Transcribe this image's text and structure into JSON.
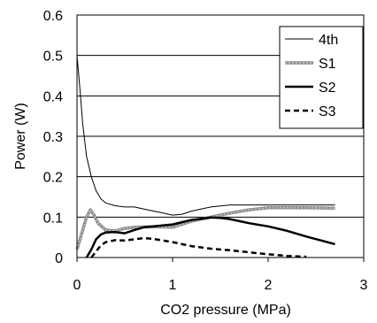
{
  "chart_data": {
    "type": "line",
    "xlabel": "CO2 pressure (MPa)",
    "ylabel": "Power (W)",
    "xlim": [
      0,
      3
    ],
    "ylim": [
      0,
      0.6
    ],
    "x_ticks": [
      "0",
      "1",
      "2",
      "3"
    ],
    "y_ticks": [
      "0",
      "0.1",
      "0.2",
      "0.3",
      "0.4",
      "0.5",
      "0.6"
    ],
    "grid": "horizontal",
    "legend_position": "top-right",
    "series": [
      {
        "name": "4th",
        "color": "#000000",
        "style": "thin-solid",
        "x": [
          0,
          0.03,
          0.06,
          0.1,
          0.15,
          0.2,
          0.25,
          0.3,
          0.4,
          0.5,
          0.6,
          0.7,
          0.8,
          0.9,
          1.0,
          1.1,
          1.2,
          1.4,
          1.6,
          2.0,
          2.4,
          2.7
        ],
        "y": [
          0.5,
          0.42,
          0.33,
          0.25,
          0.2,
          0.165,
          0.145,
          0.135,
          0.128,
          0.125,
          0.125,
          0.12,
          0.115,
          0.11,
          0.105,
          0.107,
          0.115,
          0.125,
          0.13,
          0.13,
          0.13,
          0.13
        ]
      },
      {
        "name": "S1",
        "color": "#999999",
        "style": "gray-thick",
        "x": [
          0,
          0.05,
          0.1,
          0.14,
          0.18,
          0.22,
          0.3,
          0.4,
          0.5,
          0.6,
          0.8,
          1.0,
          1.2,
          1.4,
          1.6,
          1.8,
          2.0,
          2.4,
          2.7
        ],
        "y": [
          0.02,
          0.06,
          0.1,
          0.118,
          0.105,
          0.085,
          0.068,
          0.066,
          0.072,
          0.075,
          0.076,
          0.075,
          0.09,
          0.1,
          0.11,
          0.118,
          0.123,
          0.123,
          0.122
        ]
      },
      {
        "name": "S2",
        "color": "#000000",
        "style": "thick-solid",
        "x": [
          0.1,
          0.15,
          0.2,
          0.25,
          0.3,
          0.4,
          0.5,
          0.6,
          0.7,
          0.8,
          1.0,
          1.2,
          1.3,
          1.4,
          1.5,
          1.6,
          1.7,
          1.8,
          2.0,
          2.2,
          2.4,
          2.7
        ],
        "y": [
          0.0,
          0.02,
          0.045,
          0.057,
          0.062,
          0.063,
          0.06,
          0.068,
          0.075,
          0.077,
          0.082,
          0.093,
          0.096,
          0.099,
          0.098,
          0.095,
          0.09,
          0.085,
          0.077,
          0.066,
          0.052,
          0.033
        ]
      },
      {
        "name": "S3",
        "color": "#000000",
        "style": "dashed",
        "x": [
          0.15,
          0.2,
          0.25,
          0.3,
          0.4,
          0.5,
          0.6,
          0.7,
          0.8,
          1.0,
          1.2,
          1.4,
          1.6,
          1.8,
          2.0,
          2.2,
          2.4
        ],
        "y": [
          0.0,
          0.015,
          0.03,
          0.038,
          0.043,
          0.042,
          0.045,
          0.048,
          0.046,
          0.038,
          0.028,
          0.022,
          0.018,
          0.013,
          0.008,
          0.004,
          0.002
        ]
      }
    ]
  }
}
